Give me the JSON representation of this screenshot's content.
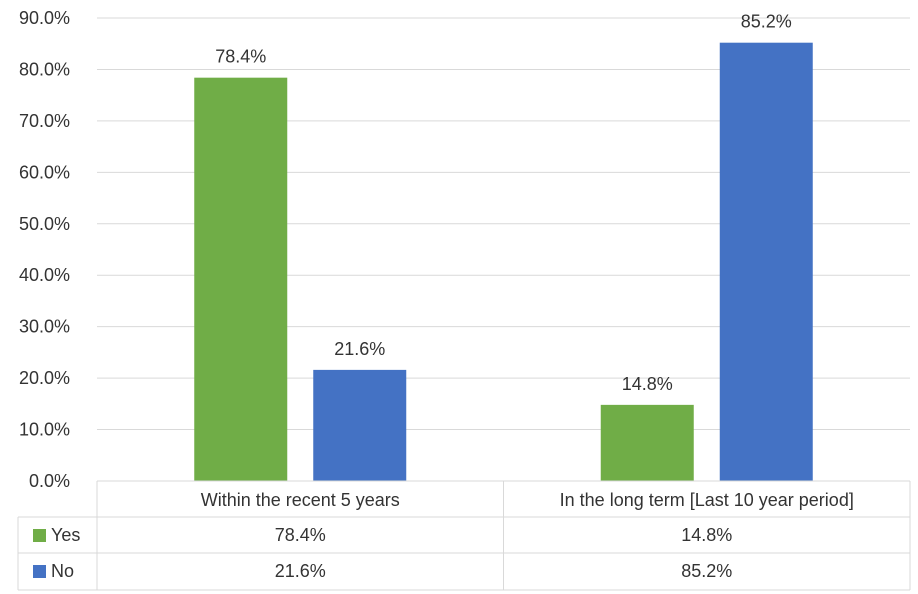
{
  "chart_data": {
    "type": "bar",
    "categories": [
      "Within the recent 5 years",
      "In the long term [Last 10 year period]"
    ],
    "series": [
      {
        "name": "Yes",
        "values": [
          78.4,
          14.8
        ],
        "labels": [
          "78.4%",
          "14.8%"
        ],
        "color": "#70ad47"
      },
      {
        "name": "No",
        "values": [
          21.6,
          85.2
        ],
        "labels": [
          "21.6%",
          "85.2%"
        ],
        "color": "#4472c4"
      }
    ],
    "ylim": [
      0,
      90
    ],
    "yticks": [
      "0.0%",
      "10.0%",
      "20.0%",
      "30.0%",
      "40.0%",
      "50.0%",
      "60.0%",
      "70.0%",
      "80.0%",
      "90.0%"
    ],
    "grid": true,
    "legend": "data-table",
    "data_table": true
  }
}
